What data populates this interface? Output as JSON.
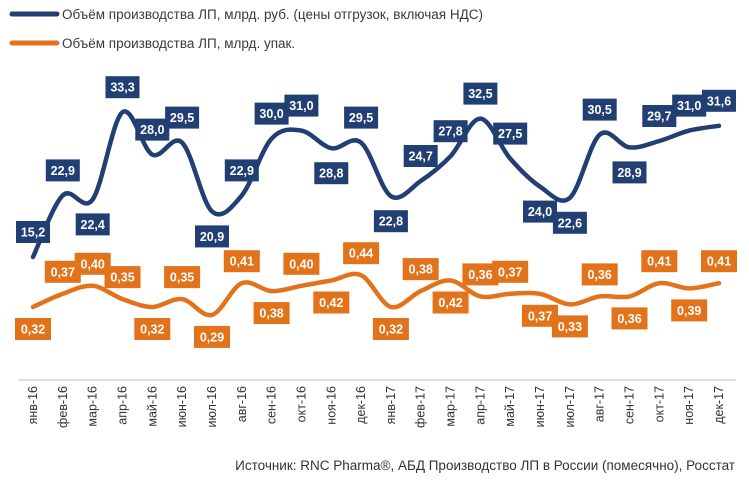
{
  "chart_data": {
    "type": "line",
    "categories": [
      "янв-16",
      "фев-16",
      "мар-16",
      "апр-16",
      "май-16",
      "июн-16",
      "июл-16",
      "авг-16",
      "сен-16",
      "окт-16",
      "ноя-16",
      "дек-16",
      "янв-17",
      "фев-17",
      "мар-17",
      "апр-17",
      "май-17",
      "июн-17",
      "июл-17",
      "авг-17",
      "сен-17",
      "окт-17",
      "ноя-17",
      "дек-17"
    ],
    "series": [
      {
        "name": "Объём производства ЛП, млрд. руб. (цены отгрузок, включая НДС)",
        "color": "#213f73",
        "values": [
          15.2,
          22.9,
          22.4,
          33.3,
          28.0,
          29.5,
          20.9,
          22.9,
          30.0,
          31.0,
          28.8,
          29.5,
          22.8,
          24.7,
          27.8,
          32.5,
          27.5,
          24.0,
          22.6,
          30.5,
          28.9,
          29.7,
          31.0,
          31.6
        ],
        "labels": [
          "15,2",
          "22,9",
          "22,4",
          "33,3",
          "28,0",
          "29,5",
          "20,9",
          "22,9",
          "30,0",
          "31,0",
          "28,8",
          "29,5",
          "22,8",
          "24,7",
          "27,8",
          "32,5",
          "27,5",
          "24,0",
          "22,6",
          "30,5",
          "28,9",
          "29,7",
          "31,0",
          "31,6"
        ]
      },
      {
        "name": "Объём производства ЛП, млрд. упак.",
        "color": "#e2731b",
        "values": [
          0.32,
          0.37,
          0.4,
          0.35,
          0.32,
          0.35,
          0.29,
          0.41,
          0.38,
          0.4,
          0.42,
          0.44,
          0.32,
          0.38,
          0.42,
          0.36,
          0.37,
          0.37,
          0.33,
          0.36,
          0.36,
          0.41,
          0.39,
          0.41
        ],
        "labels": [
          "0,32",
          "0,37",
          "0,40",
          "0,35",
          "0,32",
          "0,35",
          "0,29",
          "0,41",
          "0,38",
          "0,40",
          "0,42",
          "0,44",
          "0,32",
          "0,38",
          "0,42",
          "0,36",
          "0,37",
          "0,37",
          "0,33",
          "0,36",
          "0,36",
          "0,41",
          "0,39",
          "0,41"
        ]
      }
    ],
    "legend_position": "top-left",
    "grid": false
  },
  "source": "Источник: RNC Pharma®, АБД Производство ЛП в России (помесячно), Росстат"
}
